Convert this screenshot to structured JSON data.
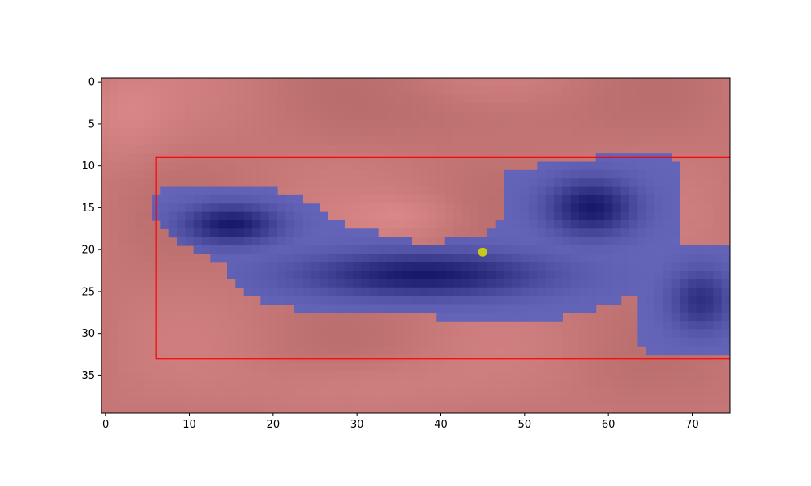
{
  "chart_data": {
    "type": "heatmap",
    "title": "",
    "xlabel": "",
    "ylabel": "",
    "xlim": [
      -0.5,
      74.5
    ],
    "ylim": [
      39.5,
      -0.5
    ],
    "xticks": [
      0,
      10,
      20,
      30,
      40,
      50,
      60,
      70
    ],
    "yticks": [
      0,
      5,
      10,
      15,
      20,
      25,
      30,
      35
    ],
    "grid": false,
    "background_colormap": {
      "low": "#a85e5e",
      "high": "#e89494"
    },
    "overlay": {
      "color": "#3c3ca8",
      "description_cells": "blue segmentation mask over red heat map",
      "rows": [
        {
          "y": 9,
          "x0": 59,
          "x1": 67
        },
        {
          "y": 10,
          "x0": 52,
          "x1": 68
        },
        {
          "y": 11,
          "x0": 48,
          "x1": 68
        },
        {
          "y": 12,
          "x0": 48,
          "x1": 68
        },
        {
          "y": 13,
          "x0": 7,
          "x1": 20,
          "x2": 48,
          "x3": 68
        },
        {
          "y": 14,
          "x0": 6,
          "x1": 23,
          "x2": 48,
          "x3": 68
        },
        {
          "y": 15,
          "x0": 6,
          "x1": 25,
          "x2": 48,
          "x3": 68
        },
        {
          "y": 16,
          "x0": 6,
          "x1": 26,
          "x2": 48,
          "x3": 68
        },
        {
          "y": 17,
          "x0": 7,
          "x1": 28,
          "x2": 47,
          "x3": 68
        },
        {
          "y": 18,
          "x0": 8,
          "x1": 32,
          "x2": 46,
          "x3": 68
        },
        {
          "y": 19,
          "x0": 9,
          "x1": 36,
          "x2": 41,
          "x3": 68
        },
        {
          "y": 20,
          "x0": 11,
          "x1": 74
        },
        {
          "y": 21,
          "x0": 13,
          "x1": 74
        },
        {
          "y": 22,
          "x0": 15,
          "x1": 74
        },
        {
          "y": 23,
          "x0": 15,
          "x1": 74
        },
        {
          "y": 24,
          "x0": 16,
          "x1": 74
        },
        {
          "y": 25,
          "x0": 17,
          "x1": 74
        },
        {
          "y": 26,
          "x0": 19,
          "x1": 61,
          "x2": 64,
          "x3": 74
        },
        {
          "y": 27,
          "x0": 23,
          "x1": 58,
          "x2": 64,
          "x3": 74
        },
        {
          "y": 28,
          "x0": 40,
          "x1": 54,
          "x2": 64,
          "x3": 74
        },
        {
          "y": 29,
          "x0": 64,
          "x1": 74
        },
        {
          "y": 30,
          "x0": 64,
          "x1": 74
        },
        {
          "y": 31,
          "x0": 64,
          "x1": 74
        },
        {
          "y": 32,
          "x0": 65,
          "x1": 74
        }
      ]
    },
    "rectangle": {
      "x": 6,
      "y": 9,
      "width": 69,
      "height": 24,
      "color": "#ff0000"
    },
    "point": {
      "x": 45,
      "y": 20.3,
      "color": "#c8c81a"
    }
  }
}
